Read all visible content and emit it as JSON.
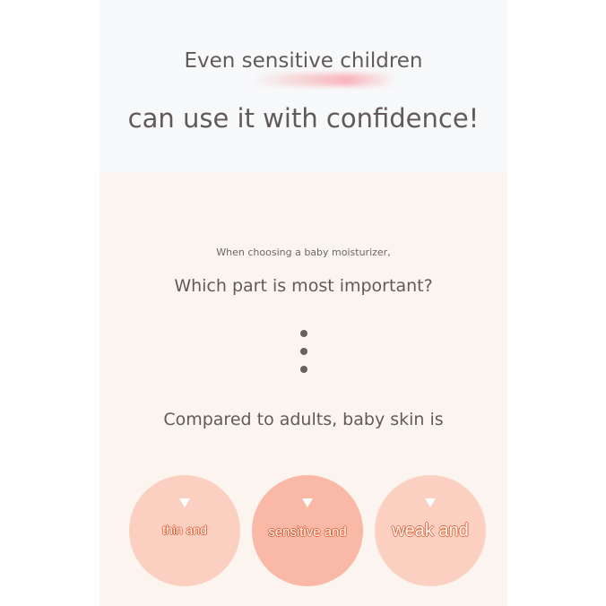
{
  "header": {
    "line1": "Even sensitive children",
    "line2": "can use it with confidence!"
  },
  "section": {
    "intro": "When choosing a baby moisturizer,",
    "question": "Which part is most important?",
    "statement": "Compared to adults, baby skin is",
    "circles": [
      {
        "label": "thin and",
        "color": "#fbd0c0"
      },
      {
        "label": "sensitive and",
        "color": "#f9b9a6"
      },
      {
        "label": "weak and",
        "color": "#fbd0c0"
      }
    ]
  },
  "colors": {
    "text": "#625a59",
    "outline": "#e8643a",
    "background": "#fcf4ef"
  }
}
